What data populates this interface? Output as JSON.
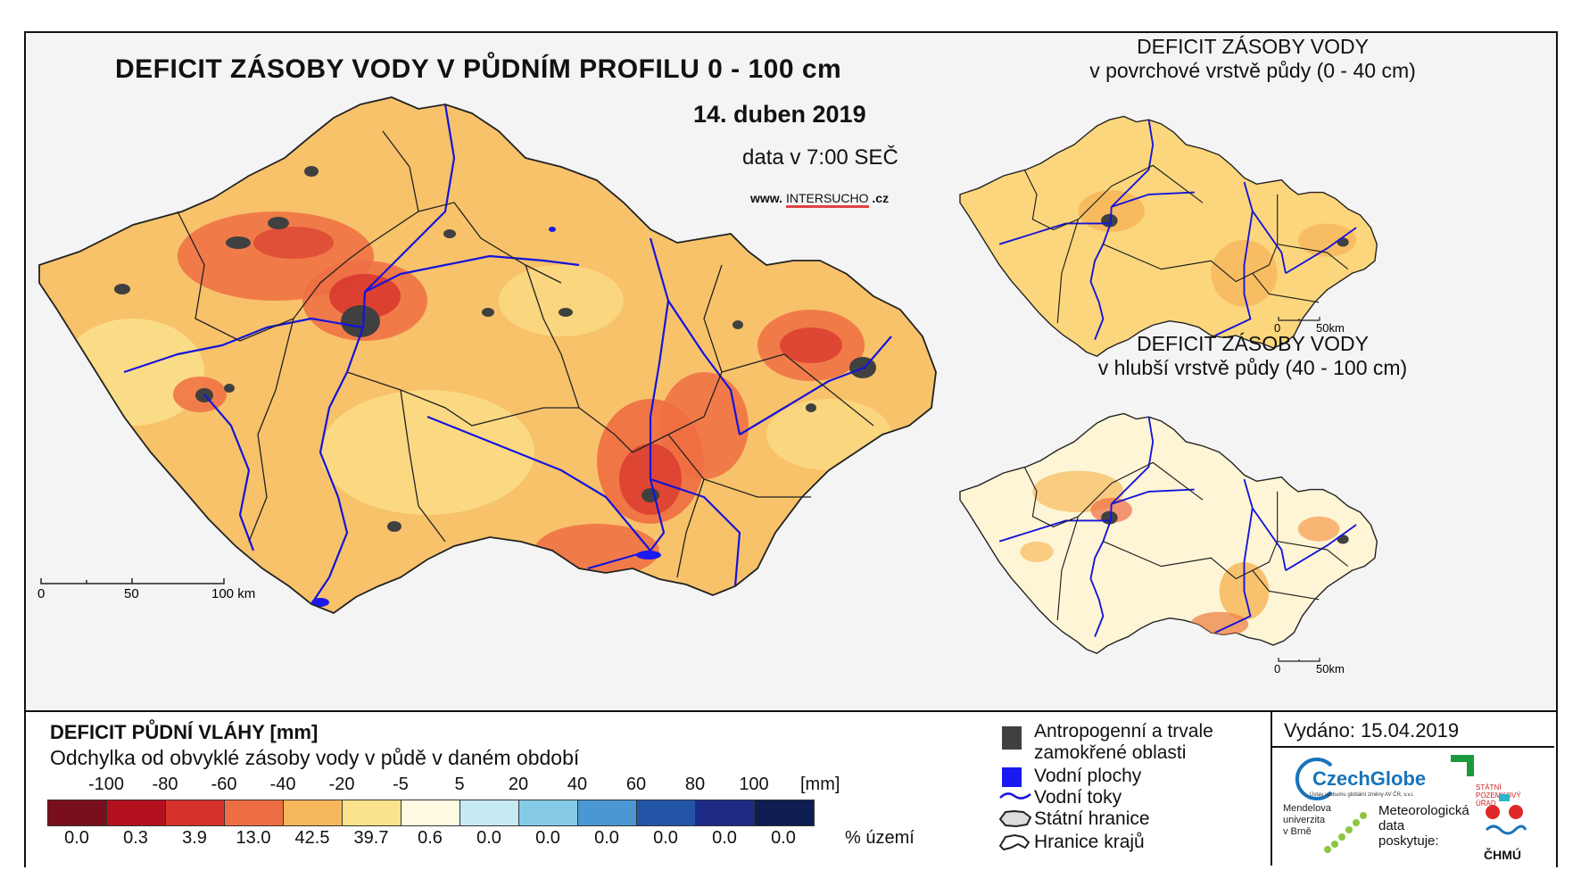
{
  "main_map": {
    "title": "DEFICIT ZÁSOBY VODY V PŮDNÍM PROFILU 0 - 100 cm",
    "date": "14. duben 2019",
    "data_time": "data v 7:00 SEČ",
    "website": {
      "prefix": "www.",
      "brand": "INTERSUCHO",
      "suffix": ".cz"
    },
    "scale": {
      "labels": [
        "0",
        "50",
        "100 km"
      ]
    }
  },
  "inset_top": {
    "title_line1": "DEFICIT ZÁSOBY VODY",
    "title_line2": "v povrchové vrstvě půdy (0 - 40 cm)",
    "scale": {
      "labels": [
        "0",
        "50km"
      ]
    }
  },
  "inset_bottom": {
    "title_line1": "DEFICIT ZÁSOBY VODY",
    "title_line2": "v hlubší vrstvě půdy (40 - 100 cm)",
    "scale": {
      "labels": [
        "0",
        "50km"
      ]
    }
  },
  "legend": {
    "title": "DEFICIT PŮDNÍ VLÁHY [mm]",
    "subtitle": "Odchylka od obvyklé zásoby vody v půdě v daném období",
    "unit": "[mm]",
    "ticks": [
      "-100",
      "-80",
      "-60",
      "-40",
      "-20",
      "-5",
      "5",
      "20",
      "40",
      "60",
      "80",
      "100"
    ],
    "classes": [
      {
        "color": "#7a0f1c",
        "pct": "0.0"
      },
      {
        "color": "#b3111f",
        "pct": "0.3"
      },
      {
        "color": "#d6322b",
        "pct": "3.9"
      },
      {
        "color": "#ee6e43",
        "pct": "13.0"
      },
      {
        "color": "#f7b75b",
        "pct": "42.5"
      },
      {
        "color": "#fbe28d",
        "pct": "39.7"
      },
      {
        "color": "#fffbe3",
        "pct": "0.6"
      },
      {
        "color": "#c7e9f4",
        "pct": "0.0"
      },
      {
        "color": "#86cbe6",
        "pct": "0.0"
      },
      {
        "color": "#4a97d3",
        "pct": "0.0"
      },
      {
        "color": "#2255a8",
        "pct": "0.0"
      },
      {
        "color": "#1d2a86",
        "pct": "0.0"
      },
      {
        "color": "#0d1d52",
        "pct": "0.0"
      }
    ],
    "pct_label": "% území"
  },
  "symbols": {
    "anthropogenic_line1": "Antropogenní a trvale",
    "anthropogenic_line2": "zamokřené oblasti",
    "water_bodies": "Vodní plochy",
    "water_courses": "Vodní toky",
    "state_border": "Státní hranice",
    "region_border": "Hranice krajů"
  },
  "issued": "Vydáno: 15.04.2019",
  "logos": {
    "czechglobe": "CzechGlobe",
    "czechglobe_sub": "Ústav výzkumu globální změny AV ČR, v.v.i.",
    "spu_line1": "STÁTNÍ",
    "spu_line2": "POZEMKOVÝ",
    "spu_line3": "ÚŘAD",
    "mendel_line1": "Mendelova",
    "mendel_line2": "univerzita",
    "mendel_line3": "v Brně",
    "meteo_line1": "Meteorologická",
    "meteo_line2": "data",
    "meteo_line3": "poskytuje:",
    "chmu": "ČHMÚ"
  },
  "colors": {
    "anthropogenic": "#404040",
    "water": "#1a1af0",
    "river": "#1414dc",
    "border": "#222222"
  }
}
